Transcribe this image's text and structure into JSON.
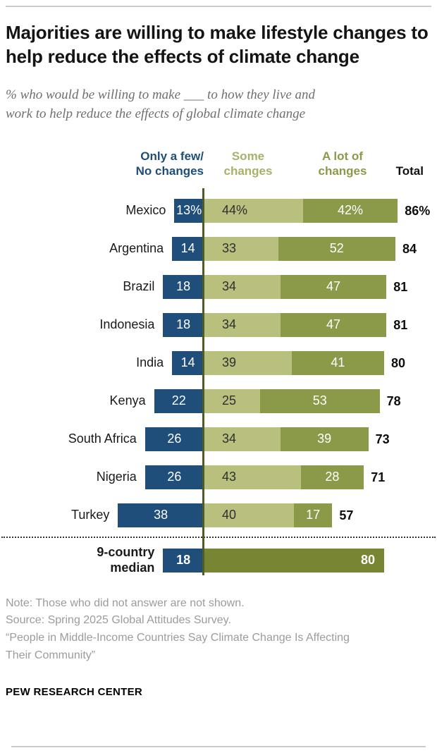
{
  "header": {
    "title": "Majorities are willing to make lifestyle changes to help reduce the effects of climate change",
    "subtitle_lines": [
      "% who would be willing to make ___ to how they live and",
      "work to help reduce the effects of global climate change"
    ]
  },
  "chart_data": {
    "type": "bar",
    "subtype": "diverging stacked horizontal",
    "unit": "%",
    "headers": {
      "few": [
        "Only a few/",
        "No changes"
      ],
      "some": [
        "Some",
        "changes"
      ],
      "alot": [
        "A lot of",
        "changes"
      ],
      "total": "Total"
    },
    "series_names": [
      "Only a few/No changes",
      "Some changes",
      "A lot of changes"
    ],
    "rows": [
      {
        "country": "Mexico",
        "values": {
          "few": 13,
          "some": 44,
          "alot": 42,
          "total": 86
        },
        "labels": {
          "few": "13%",
          "some": "44%",
          "alot": "42%",
          "total": "86%"
        }
      },
      {
        "country": "Argentina",
        "values": {
          "few": 14,
          "some": 33,
          "alot": 52,
          "total": 84
        },
        "labels": {
          "few": "14",
          "some": "33",
          "alot": "52",
          "total": "84"
        }
      },
      {
        "country": "Brazil",
        "values": {
          "few": 18,
          "some": 34,
          "alot": 47,
          "total": 81
        },
        "labels": {
          "few": "18",
          "some": "34",
          "alot": "47",
          "total": "81"
        }
      },
      {
        "country": "Indonesia",
        "values": {
          "few": 18,
          "some": 34,
          "alot": 47,
          "total": 81
        },
        "labels": {
          "few": "18",
          "some": "34",
          "alot": "47",
          "total": "81"
        }
      },
      {
        "country": "India",
        "values": {
          "few": 14,
          "some": 39,
          "alot": 41,
          "total": 80
        },
        "labels": {
          "few": "14",
          "some": "39",
          "alot": "41",
          "total": "80"
        }
      },
      {
        "country": "Kenya",
        "values": {
          "few": 22,
          "some": 25,
          "alot": 53,
          "total": 78
        },
        "labels": {
          "few": "22",
          "some": "25",
          "alot": "53",
          "total": "78"
        }
      },
      {
        "country": "South Africa",
        "values": {
          "few": 26,
          "some": 34,
          "alot": 39,
          "total": 73
        },
        "labels": {
          "few": "26",
          "some": "34",
          "alot": "39",
          "total": "73"
        }
      },
      {
        "country": "Nigeria",
        "values": {
          "few": 26,
          "some": 43,
          "alot": 28,
          "total": 71
        },
        "labels": {
          "few": "26",
          "some": "43",
          "alot": "28",
          "total": "71"
        }
      },
      {
        "country": "Turkey",
        "values": {
          "few": 38,
          "some": 40,
          "alot": 17,
          "total": 57
        },
        "labels": {
          "few": "38",
          "some": "40",
          "alot": "17",
          "total": "57"
        }
      }
    ],
    "median_row": {
      "label_lines": [
        "9-country",
        "median"
      ],
      "values": {
        "few": 18,
        "total": 80
      },
      "labels": {
        "few": "18",
        "total": "80"
      }
    },
    "colors": {
      "few": "#1e4e79",
      "some": "#b9c07e",
      "alot": "#8a9a49",
      "median_total": "#788532",
      "axis_line": "#4f5e20",
      "few_header_text": "#1e4e79",
      "some_header_text": "#a9b06a",
      "alot_header_text": "#8a9a49"
    },
    "axis": {
      "left_max": 38,
      "right_max": 86,
      "center": 0
    }
  },
  "footer": {
    "note_lines": [
      "Note: Those who did not answer are not shown.",
      "Source: Spring 2025 Global Attitudes Survey.",
      "“People in Middle-Income Countries Say Climate Change Is Affecting",
      "Their Community”"
    ],
    "brand": "PEW RESEARCH CENTER"
  }
}
